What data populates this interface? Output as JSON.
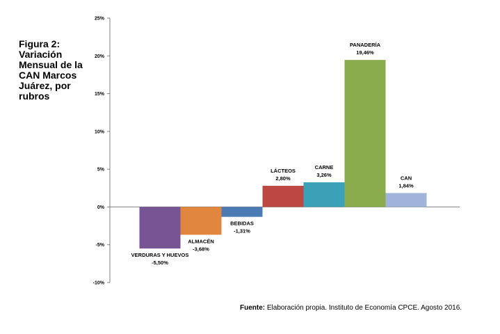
{
  "figure_title": "Figura 2:\nVariación\nMensual de la\nCAN Marcos\nJuárez, por\nrubros",
  "source_label": "Fuente:",
  "source_text": "Elaboración propia. Instituto de Economía CPCE. Agosto 2016.",
  "chart_data": {
    "type": "bar",
    "title": "Figura 2: Variación Mensual de la CAN Marcos Juárez, por rubros",
    "xlabel": "",
    "ylabel": "",
    "ylim": [
      -10,
      25
    ],
    "yticks": [
      -10,
      -5,
      0,
      5,
      10,
      15,
      20,
      25
    ],
    "ytick_labels": [
      "-10%",
      "-5%",
      "0%",
      "5%",
      "10%",
      "15%",
      "20%",
      "25%"
    ],
    "grid": false,
    "categories": [
      "VERDURAS Y HUEVOS",
      "ALMACÉN",
      "BEBIDAS",
      "LÁCTEOS",
      "CARNE",
      "PANADERÍA",
      "CAN"
    ],
    "values": [
      -5.5,
      -3.68,
      -1.31,
      2.8,
      3.26,
      19.46,
      1.84
    ],
    "value_labels": [
      "-5,50%",
      "-3,68%",
      "-1,31%",
      "2,80%",
      "3,26%",
      "19,46%",
      "1,84%"
    ],
    "colors": [
      "#775594",
      "#e0863f",
      "#4c7bb3",
      "#bd4743",
      "#3aa1b7",
      "#8bac4d",
      "#9fb4d8"
    ]
  }
}
